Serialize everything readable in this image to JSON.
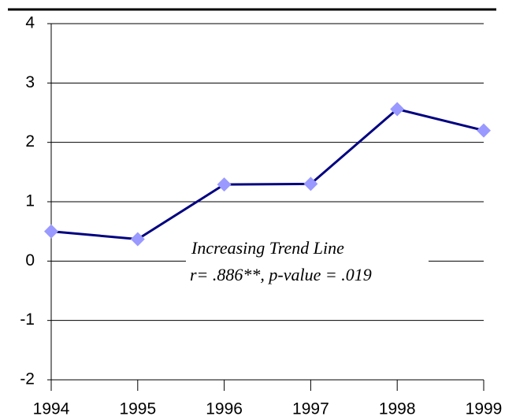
{
  "chart_data": {
    "type": "line",
    "x": [
      1994,
      1995,
      1996,
      1997,
      1998,
      1999
    ],
    "series": [
      {
        "color": "#000080",
        "marker_color": "#9999ff",
        "values": [
          0.5,
          0.37,
          1.29,
          1.3,
          2.56,
          2.2
        ]
      }
    ],
    "xlim": [
      1994,
      1999
    ],
    "xticks": [
      1994,
      1995,
      1996,
      1997,
      1998,
      1999
    ],
    "ylim": [
      -2,
      4
    ],
    "yticks": [
      -2,
      -1,
      0,
      1,
      2,
      3,
      4
    ],
    "grid": true,
    "annotations": [
      "Increasing Trend Line",
      "r= .886**, p-value = .019"
    ]
  }
}
